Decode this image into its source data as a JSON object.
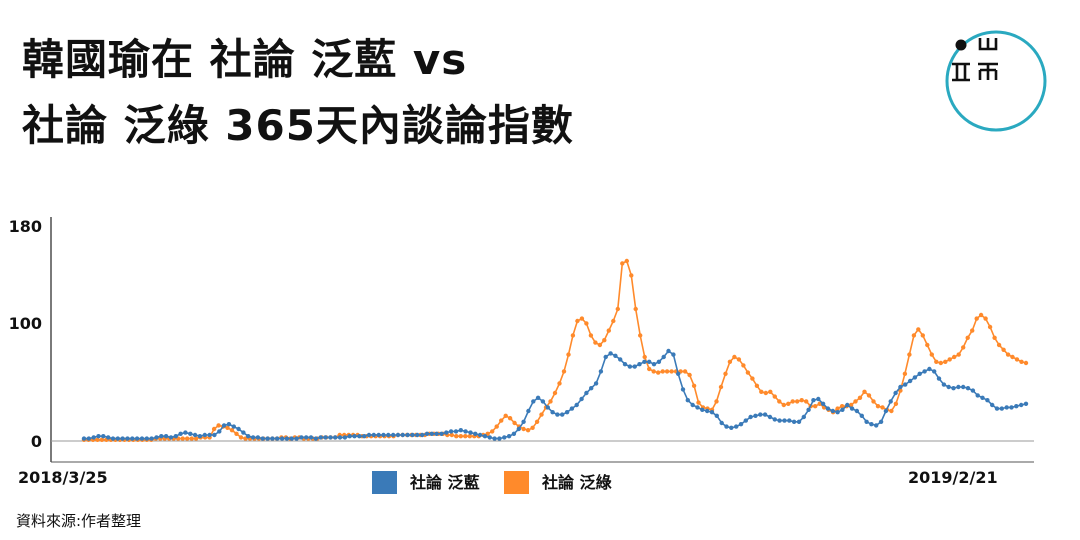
{
  "title": {
    "line1": "韓國瑜在 社論 泛藍 vs",
    "line2": "社論 泛綠 365天內談論指數"
  },
  "logo": {
    "icon": "logo-circle-icon",
    "accent": "#2aa9c0"
  },
  "source": "資料來源:作者整理",
  "chart_data": {
    "type": "line",
    "x_start": "2018/3/25",
    "x_end": "2019/2/21",
    "xticks": [
      "2018/3/25",
      "2019/2/21"
    ],
    "ylim": [
      0,
      180
    ],
    "yticks": [
      0,
      100,
      180
    ],
    "legend_position": "bottom-center",
    "series": [
      {
        "name": "社論 泛藍",
        "color": "#3a7ab8",
        "values": [
          2,
          2,
          3,
          4,
          4,
          3,
          2,
          2,
          2,
          2,
          2,
          2,
          2,
          2,
          2,
          3,
          4,
          4,
          3,
          4,
          6,
          7,
          6,
          5,
          4,
          5,
          5,
          5,
          8,
          13,
          14,
          12,
          10,
          7,
          4,
          3,
          3,
          2,
          2,
          2,
          2,
          2,
          2,
          2,
          2,
          3,
          3,
          3,
          2,
          3,
          3,
          3,
          3,
          3,
          3,
          4,
          4,
          4,
          4,
          5,
          5,
          5,
          5,
          5,
          5,
          5,
          5,
          5,
          5,
          5,
          5,
          6,
          6,
          6,
          6,
          7,
          8,
          8,
          9,
          8,
          7,
          6,
          5,
          4,
          3,
          2,
          2,
          3,
          4,
          6,
          10,
          16,
          25,
          33,
          36,
          33,
          28,
          24,
          22,
          22,
          24,
          27,
          30,
          35,
          40,
          44,
          48,
          58,
          70,
          73,
          71,
          68,
          64,
          62,
          62,
          64,
          66,
          66,
          64,
          66,
          70,
          75,
          72,
          56,
          43,
          34,
          30,
          28,
          26,
          25,
          24,
          21,
          15,
          12,
          11,
          12,
          14,
          17,
          20,
          21,
          22,
          22,
          20,
          18,
          17,
          17,
          17,
          16,
          16,
          20,
          26,
          34,
          35,
          31,
          27,
          25,
          24,
          26,
          30,
          27,
          25,
          21,
          16,
          14,
          13,
          16,
          25,
          33,
          40,
          45,
          47,
          50,
          53,
          56,
          58,
          60,
          58,
          52,
          47,
          45,
          44,
          45,
          45,
          44,
          42,
          38,
          36,
          34,
          30,
          27,
          27,
          28,
          28,
          29,
          30,
          31
        ]
      },
      {
        "name": "社論 泛綠",
        "color": "#ff8a2b",
        "values": [
          1,
          1,
          1,
          1,
          1,
          1,
          1,
          1,
          1,
          1,
          1,
          1,
          1,
          1,
          1,
          1,
          2,
          2,
          2,
          2,
          2,
          2,
          2,
          2,
          2,
          2,
          3,
          3,
          3,
          10,
          13,
          12,
          11,
          9,
          6,
          3,
          2,
          2,
          2,
          2,
          2,
          2,
          2,
          2,
          3,
          3,
          2,
          3,
          3,
          2,
          2,
          2,
          2,
          3,
          3,
          3,
          3,
          5,
          5,
          5,
          5,
          5,
          4,
          4,
          4,
          4,
          4,
          4,
          4,
          4,
          5,
          5,
          5,
          5,
          5,
          5,
          5,
          6,
          6,
          6,
          6,
          5,
          5,
          4,
          4,
          4,
          4,
          4,
          4,
          5,
          6,
          8,
          12,
          17,
          21,
          19,
          15,
          12,
          10,
          9,
          11,
          16,
          22,
          28,
          33,
          40,
          48,
          58,
          72,
          88,
          100,
          102,
          98,
          88,
          82,
          80,
          84,
          92,
          100,
          110,
          148,
          150,
          138,
          110,
          88,
          70,
          60,
          58,
          57,
          58,
          58,
          58,
          58,
          58,
          58,
          55,
          46,
          32,
          28,
          27,
          26,
          33,
          45,
          56,
          66,
          70,
          68,
          63,
          57,
          52,
          46,
          41,
          40,
          41,
          37,
          33,
          30,
          31,
          33,
          33,
          34,
          33,
          29,
          29,
          31,
          28,
          26,
          24,
          27,
          29,
          29,
          30,
          33,
          36,
          41,
          38,
          33,
          29,
          28,
          26,
          25,
          31,
          42,
          56,
          72,
          88,
          93,
          88,
          80,
          72,
          66,
          65,
          66,
          68,
          70,
          72,
          78,
          86,
          92,
          102,
          105,
          102,
          95,
          86,
          80,
          76,
          72,
          70,
          68,
          66,
          65
        ]
      }
    ]
  }
}
